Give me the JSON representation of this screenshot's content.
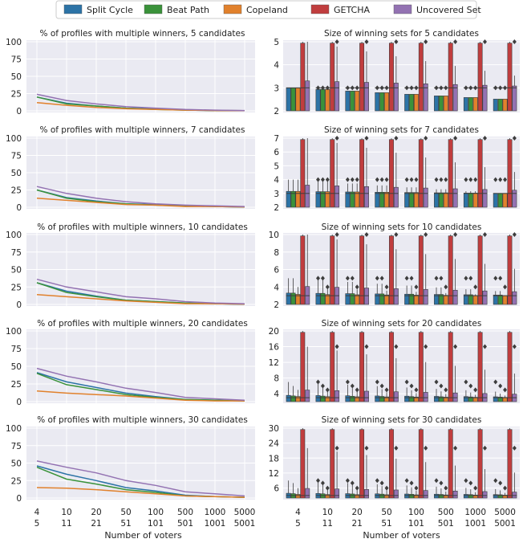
{
  "legend": {
    "entries": [
      {
        "name": "Split Cycle",
        "color": "#2c73a6"
      },
      {
        "name": "Beat Path",
        "color": "#3a923a"
      },
      {
        "name": "Copeland",
        "color": "#e1812c"
      },
      {
        "name": "GETCHA",
        "color": "#c03d3e"
      },
      {
        "name": "Uncovered Set",
        "color": "#9372b2"
      }
    ]
  },
  "x_axis": {
    "label": "Number of voters",
    "ticks": [
      {
        "top": "4",
        "bottom": "5"
      },
      {
        "top": "10",
        "bottom": "11"
      },
      {
        "top": "20",
        "bottom": "21"
      },
      {
        "top": "50",
        "bottom": "51"
      },
      {
        "top": "100",
        "bottom": "101"
      },
      {
        "top": "500",
        "bottom": "501"
      },
      {
        "top": "1000",
        "bottom": "1001"
      },
      {
        "top": "5000",
        "bottom": "5001"
      }
    ]
  },
  "chart_data": [
    {
      "type": "line",
      "candidates": 5,
      "title": "% of profiles with multiple winners, 5 candidates",
      "ylim": [
        0,
        100
      ],
      "yticks": [
        "0",
        "25",
        "50",
        "75",
        "100"
      ],
      "series": [
        {
          "name": "Split Cycle",
          "color": "#2c73a6",
          "values": [
            20,
            11,
            7,
            4,
            3,
            1,
            0.5,
            0.3
          ]
        },
        {
          "name": "Beat Path",
          "color": "#3a923a",
          "values": [
            20,
            10,
            7,
            4,
            2,
            1,
            0.5,
            0.3
          ]
        },
        {
          "name": "Copeland",
          "color": "#e1812c",
          "values": [
            12,
            8,
            5,
            3,
            2,
            1,
            0.5,
            0.3
          ]
        },
        {
          "name": "Uncovered Set",
          "color": "#9372b2",
          "values": [
            24,
            15,
            10,
            6,
            4,
            2,
            1,
            0.5
          ]
        }
      ]
    },
    {
      "type": "line",
      "candidates": 7,
      "title": "% of profiles with multiple winners, 7 candidates",
      "ylim": [
        0,
        100
      ],
      "yticks": [
        "0",
        "25",
        "50",
        "75",
        "100"
      ],
      "series": [
        {
          "name": "Split Cycle",
          "color": "#2c73a6",
          "values": [
            25,
            14,
            9,
            5,
            4,
            2,
            1,
            0.5
          ]
        },
        {
          "name": "Beat Path",
          "color": "#3a923a",
          "values": [
            25,
            13,
            8,
            5,
            3,
            2,
            1,
            0.5
          ]
        },
        {
          "name": "Copeland",
          "color": "#e1812c",
          "values": [
            13,
            10,
            7,
            4,
            3,
            1,
            1,
            0.5
          ]
        },
        {
          "name": "Uncovered Set",
          "color": "#9372b2",
          "values": [
            30,
            20,
            13,
            8,
            5,
            3,
            2,
            1
          ]
        }
      ]
    },
    {
      "type": "line",
      "candidates": 10,
      "title": "% of profiles with multiple winners, 10 candidates",
      "ylim": [
        0,
        100
      ],
      "yticks": [
        "0",
        "25",
        "50",
        "75",
        "100"
      ],
      "series": [
        {
          "name": "Split Cycle",
          "color": "#2c73a6",
          "values": [
            31,
            19,
            12,
            6,
            4,
            2,
            1,
            0.5
          ]
        },
        {
          "name": "Beat Path",
          "color": "#3a923a",
          "values": [
            31,
            17,
            11,
            6,
            4,
            2,
            1,
            0.5
          ]
        },
        {
          "name": "Copeland",
          "color": "#e1812c",
          "values": [
            14,
            11,
            8,
            5,
            3,
            1,
            1,
            0.5
          ]
        },
        {
          "name": "Uncovered Set",
          "color": "#9372b2",
          "values": [
            36,
            25,
            18,
            11,
            8,
            4,
            2,
            1
          ]
        }
      ]
    },
    {
      "type": "line",
      "candidates": 20,
      "title": "% of profiles with multiple winners, 20 candidates",
      "ylim": [
        0,
        100
      ],
      "yticks": [
        "0",
        "25",
        "50",
        "75",
        "100"
      ],
      "series": [
        {
          "name": "Split Cycle",
          "color": "#2c73a6",
          "values": [
            41,
            28,
            20,
            12,
            7,
            3,
            2,
            1
          ]
        },
        {
          "name": "Beat Path",
          "color": "#3a923a",
          "values": [
            40,
            24,
            17,
            10,
            6,
            3,
            2,
            1
          ]
        },
        {
          "name": "Copeland",
          "color": "#e1812c",
          "values": [
            15,
            12,
            10,
            8,
            5,
            2,
            1,
            1
          ]
        },
        {
          "name": "Uncovered Set",
          "color": "#9372b2",
          "values": [
            47,
            36,
            28,
            19,
            13,
            6,
            4,
            2
          ]
        }
      ]
    },
    {
      "type": "line",
      "candidates": 30,
      "title": "% of profiles with multiple winners, 30 candidates",
      "ylim": [
        0,
        100
      ],
      "yticks": [
        "0",
        "25",
        "50",
        "75",
        "100"
      ],
      "series": [
        {
          "name": "Split Cycle",
          "color": "#2c73a6",
          "values": [
            46,
            34,
            25,
            15,
            10,
            4,
            2,
            1
          ]
        },
        {
          "name": "Beat Path",
          "color": "#3a923a",
          "values": [
            44,
            27,
            20,
            12,
            8,
            3,
            2,
            1
          ]
        },
        {
          "name": "Copeland",
          "color": "#e1812c",
          "values": [
            15,
            14,
            12,
            9,
            6,
            3,
            2,
            1
          ]
        },
        {
          "name": "Uncovered Set",
          "color": "#9372b2",
          "values": [
            53,
            44,
            36,
            25,
            18,
            9,
            6,
            3
          ]
        }
      ]
    },
    {
      "type": "boxen",
      "candidates": 5,
      "title": "Size of winning sets for 5 candidates",
      "ylim": [
        2,
        5
      ],
      "yticks": [
        2,
        3,
        4,
        5
      ],
      "medians": {
        "Split Cycle": 3,
        "Beat Path": 3,
        "Copeland": 3,
        "GETCHA": 3,
        "Uncovered Set": 3
      },
      "max": {
        "Split Cycle": 3,
        "Beat Path": 3,
        "Copeland": 3,
        "GETCHA": 5,
        "Uncovered Set": 5
      }
    },
    {
      "type": "boxen",
      "candidates": 7,
      "title": "Size of winning sets for 7 candidates",
      "ylim": [
        2,
        7
      ],
      "yticks": [
        2,
        3,
        4,
        5,
        6,
        7
      ],
      "medians": {
        "Split Cycle": 3,
        "Beat Path": 3,
        "Copeland": 3,
        "GETCHA": 3,
        "Uncovered Set": 3
      },
      "max": {
        "Split Cycle": 4,
        "Beat Path": 4,
        "Copeland": 4,
        "GETCHA": 7,
        "Uncovered Set": 7
      }
    },
    {
      "type": "boxen",
      "candidates": 10,
      "title": "Size of winning sets for 10 candidates",
      "ylim": [
        2,
        10
      ],
      "yticks": [
        2,
        4,
        6,
        8,
        10
      ],
      "medians": {
        "Split Cycle": 3,
        "Beat Path": 3,
        "Copeland": 3,
        "GETCHA": 3,
        "Uncovered Set": 3
      },
      "max": {
        "Split Cycle": 5,
        "Beat Path": 5,
        "Copeland": 4,
        "GETCHA": 10,
        "Uncovered Set": 10
      }
    },
    {
      "type": "boxen",
      "candidates": 20,
      "title": "Size of winning sets for 20 candidates",
      "ylim": [
        2,
        20
      ],
      "yticks": [
        4,
        8,
        12,
        16,
        20
      ],
      "medians": {
        "Split Cycle": 3,
        "Beat Path": 3,
        "Copeland": 3,
        "GETCHA": 3,
        "Uncovered Set": 3
      },
      "max": {
        "Split Cycle": 7,
        "Beat Path": 6,
        "Copeland": 5,
        "GETCHA": 20,
        "Uncovered Set": 16
      }
    },
    {
      "type": "boxen",
      "candidates": 30,
      "title": "Size of winning sets for 30 candidates",
      "ylim": [
        2,
        30
      ],
      "yticks": [
        6,
        12,
        18,
        24,
        30
      ],
      "medians": {
        "Split Cycle": 3,
        "Beat Path": 3,
        "Copeland": 3,
        "GETCHA": 3,
        "Uncovered Set": 3
      },
      "max": {
        "Split Cycle": 9,
        "Beat Path": 8,
        "Copeland": 6,
        "GETCHA": 30,
        "Uncovered Set": 22
      }
    }
  ]
}
